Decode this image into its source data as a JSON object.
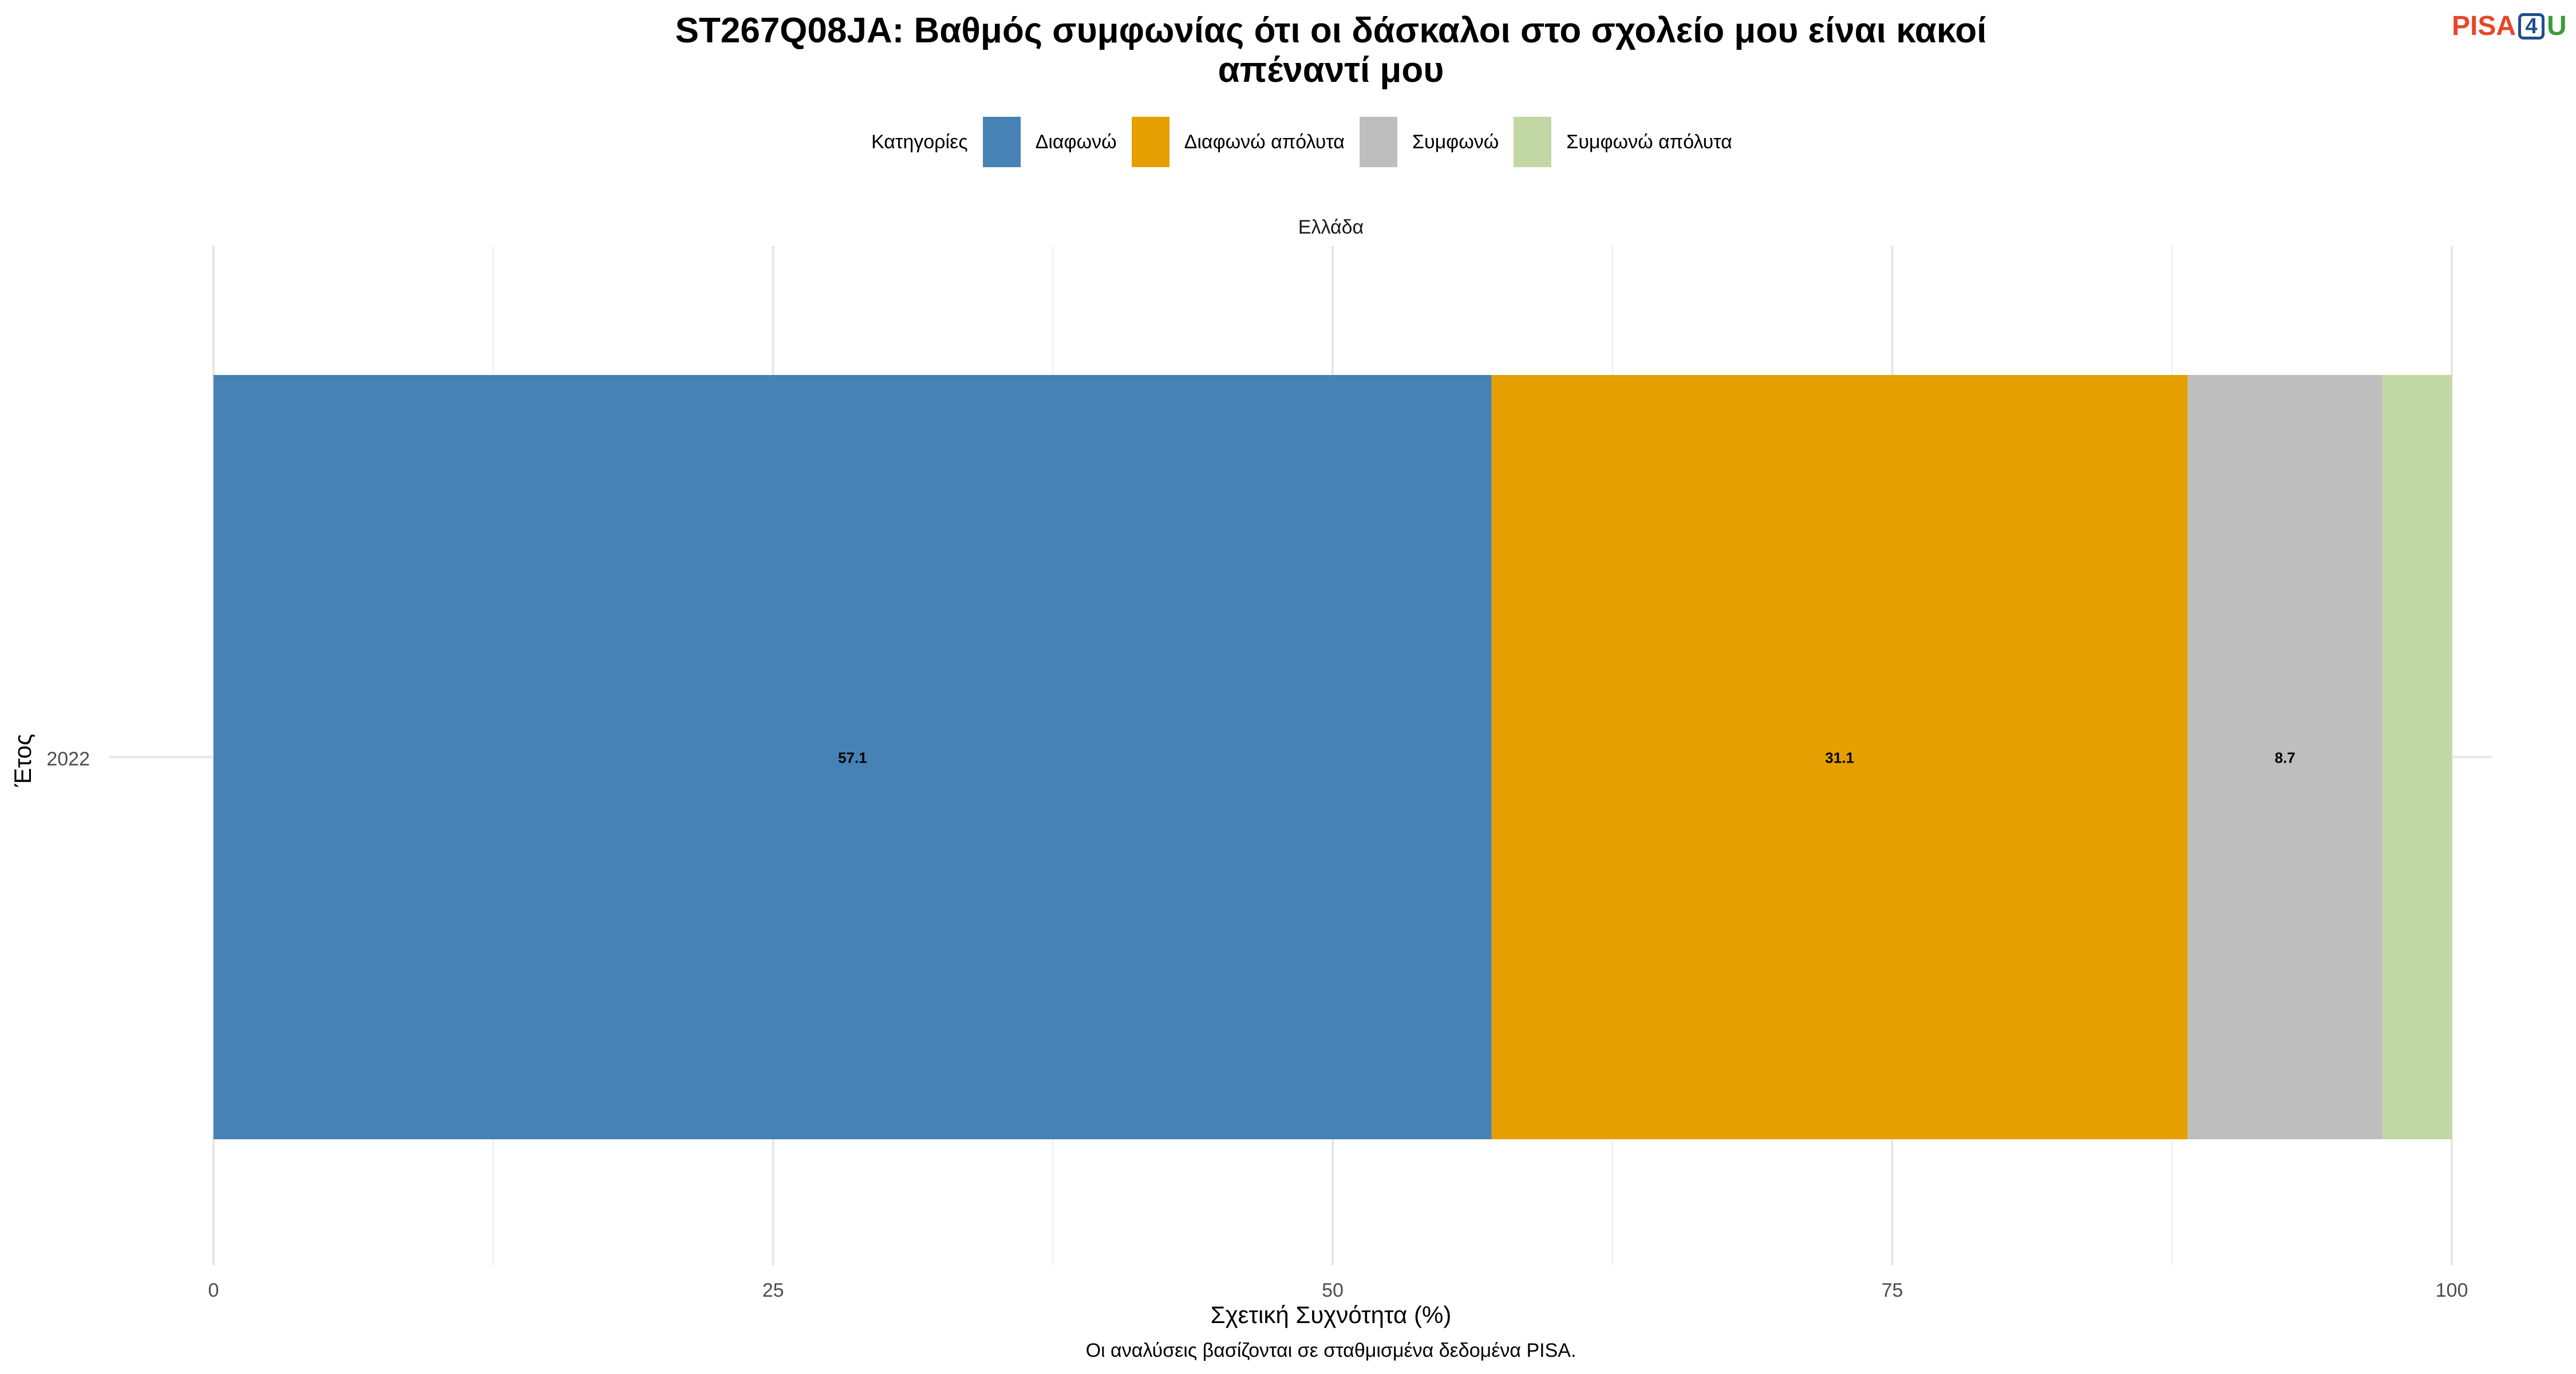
{
  "title_line_1": "ST267Q08JA: Βαθμός συμφωνίας ότι οι δάσκαλοι στο σχολείο μου είναι κακοί",
  "title_line_2": "απέναντί μου",
  "logo": {
    "text_pisa": "PISA",
    "text_four": "4",
    "text_u": "U",
    "colors": {
      "pisa": "#e5472b",
      "four": "#1f4e8c",
      "u": "#3a9c35"
    }
  },
  "legend": {
    "title": "Κατηγορίες",
    "placement": "top-center"
  },
  "caption": "Οι αναλύσεις βασίζονται σε σταθμισμένα δεδομένα PISA.",
  "chart_data": {
    "type": "bar",
    "orientation": "horizontal",
    "stacked": true,
    "facet_label": "Ελλάδα",
    "categories": [
      "2022"
    ],
    "xlabel": "Σχετική Συχνότητα (%)",
    "ylabel": "Έτος",
    "xlim": [
      0,
      100
    ],
    "xticks": [
      0,
      25,
      50,
      75,
      100
    ],
    "xtick_labels": [
      "0",
      "25",
      "50",
      "75",
      "100"
    ],
    "grid": true,
    "legend_placement": "top",
    "series": [
      {
        "name": "Διαφωνώ",
        "values": [
          57.1
        ],
        "color": "#4682b4",
        "label": "57.1"
      },
      {
        "name": "Διαφωνώ απόλυτα",
        "values": [
          31.1
        ],
        "color": "#e69f00",
        "label": "31.1"
      },
      {
        "name": "Συμφωνώ",
        "values": [
          8.7
        ],
        "color": "#bebebe",
        "label": "8.7"
      },
      {
        "name": "Συμφωνώ απόλυτα",
        "values": [
          3.1
        ],
        "color": "#c1d8a5",
        "label": ""
      }
    ]
  }
}
